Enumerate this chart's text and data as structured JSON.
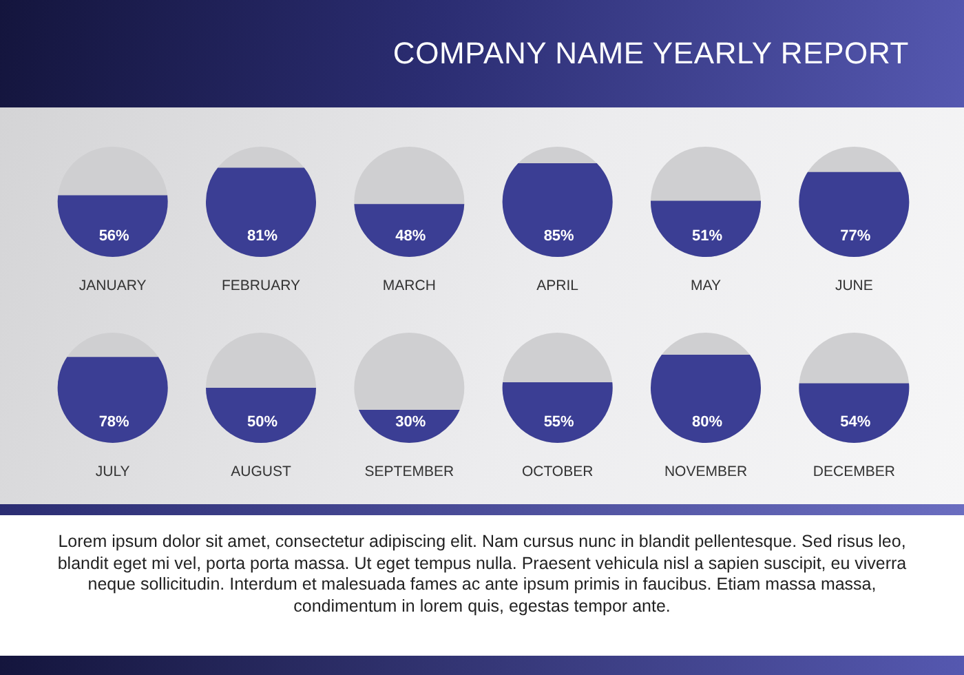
{
  "chart_data": {
    "type": "other",
    "title": "COMPANY NAME YEARLY REPORT",
    "categories": [
      "JANUARY",
      "FEBRUARY",
      "MARCH",
      "APRIL",
      "MAY",
      "JUNE",
      "JULY",
      "AUGUST",
      "SEPTEMBER",
      "OCTOBER",
      "NOVEMBER",
      "DECEMBER"
    ],
    "values": [
      56,
      81,
      48,
      85,
      51,
      77,
      78,
      50,
      30,
      55,
      80,
      54
    ],
    "color": "#3b3e94",
    "value_labels": [
      "56%",
      "81%",
      "48%",
      "85%",
      "51%",
      "77%",
      "78%",
      "50%",
      "30%",
      "55%",
      "80%",
      "54%"
    ],
    "annotations": [
      "Lorem ipsum dolor sit amet, consectetur adipiscing elit. Nam cursus nunc in blandit pellentesque. Sed risus leo, blandit eget mi vel, porta porta massa. Ut eget tempus nulla.  Praesent vehicula nisl a sapien suscipit, eu viverra neque sollicitudin. Interdum et malesuada fames ac ante ipsum primis in faucibus. Etiam massa massa, condimentum in lorem quis, egestas tempor ante."
    ]
  }
}
